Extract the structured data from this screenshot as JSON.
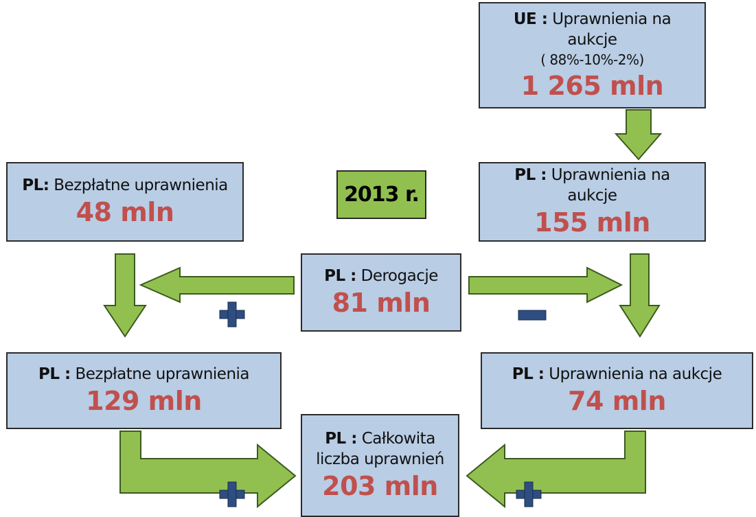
{
  "badge": "2013 r.",
  "nodes": [
    {
      "prefix": "UE :",
      "label": "Uprawnienia na aukcje",
      "note": "( 88%-10%-2%)",
      "value": "1 265 mln"
    },
    {
      "prefix": "PL:",
      "label": "Bezpłatne uprawnienia",
      "value": "48 mln"
    },
    {
      "prefix": "PL :",
      "label": "Uprawnienia na aukcje",
      "value": "155 mln"
    },
    {
      "prefix": "PL :",
      "label": "Derogacje",
      "value": "81 mln"
    },
    {
      "prefix": "PL :",
      "label": "Bezpłatne uprawnienia",
      "value": "129 mln"
    },
    {
      "prefix": "PL :",
      "label": "Uprawnienia na aukcje",
      "value": "74 mln"
    },
    {
      "prefix": "PL :",
      "label": "Całkowita liczba uprawnień",
      "value": "203 mln"
    }
  ]
}
